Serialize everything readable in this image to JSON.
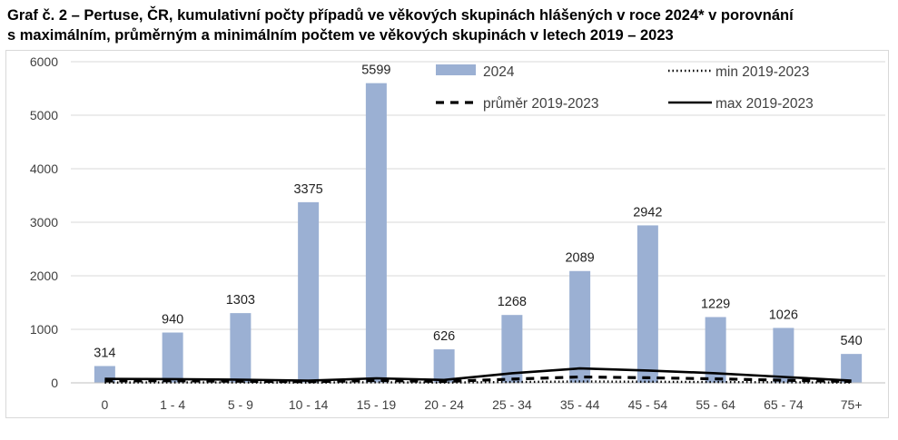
{
  "title": {
    "line1": "Graf č. 2 – Pertuse, ČR, kumulativní počty případů ve věkových skupinách hlášených v roce 2024* v porovnání",
    "line2": "s maximálním, průměrným a minimálním počtem ve věkových skupinách v  letech 2019 – 2023"
  },
  "chart_data": {
    "type": "bar",
    "categories": [
      "0",
      "1 - 4",
      "5 - 9",
      "10 - 14",
      "15 - 19",
      "20 - 24",
      "25 - 34",
      "35 - 44",
      "45 - 54",
      "55 - 64",
      "65 - 74",
      "75+"
    ],
    "ylim": [
      0,
      6000
    ],
    "yticks": [
      0,
      1000,
      2000,
      3000,
      4000,
      5000,
      6000
    ],
    "grid": true,
    "legend_position": "top",
    "series": [
      {
        "name": "2024",
        "kind": "bar",
        "color": "#9bb0d3",
        "values": [
          314,
          940,
          1303,
          3375,
          5599,
          626,
          1268,
          2089,
          2942,
          1229,
          1026,
          540
        ]
      },
      {
        "name": "min 2019-2023",
        "kind": "line",
        "style": "dotted",
        "color": "#000000",
        "values": [
          5,
          8,
          6,
          5,
          10,
          5,
          15,
          25,
          20,
          15,
          10,
          5
        ]
      },
      {
        "name": "průměr 2019-2023",
        "kind": "line",
        "style": "dashed",
        "color": "#000000",
        "values": [
          35,
          40,
          30,
          20,
          45,
          25,
          70,
          110,
          95,
          75,
          50,
          25
        ]
      },
      {
        "name": "max 2019-2023",
        "kind": "line",
        "style": "solid",
        "color": "#000000",
        "values": [
          75,
          70,
          60,
          40,
          85,
          55,
          180,
          270,
          230,
          180,
          110,
          40
        ]
      }
    ]
  }
}
